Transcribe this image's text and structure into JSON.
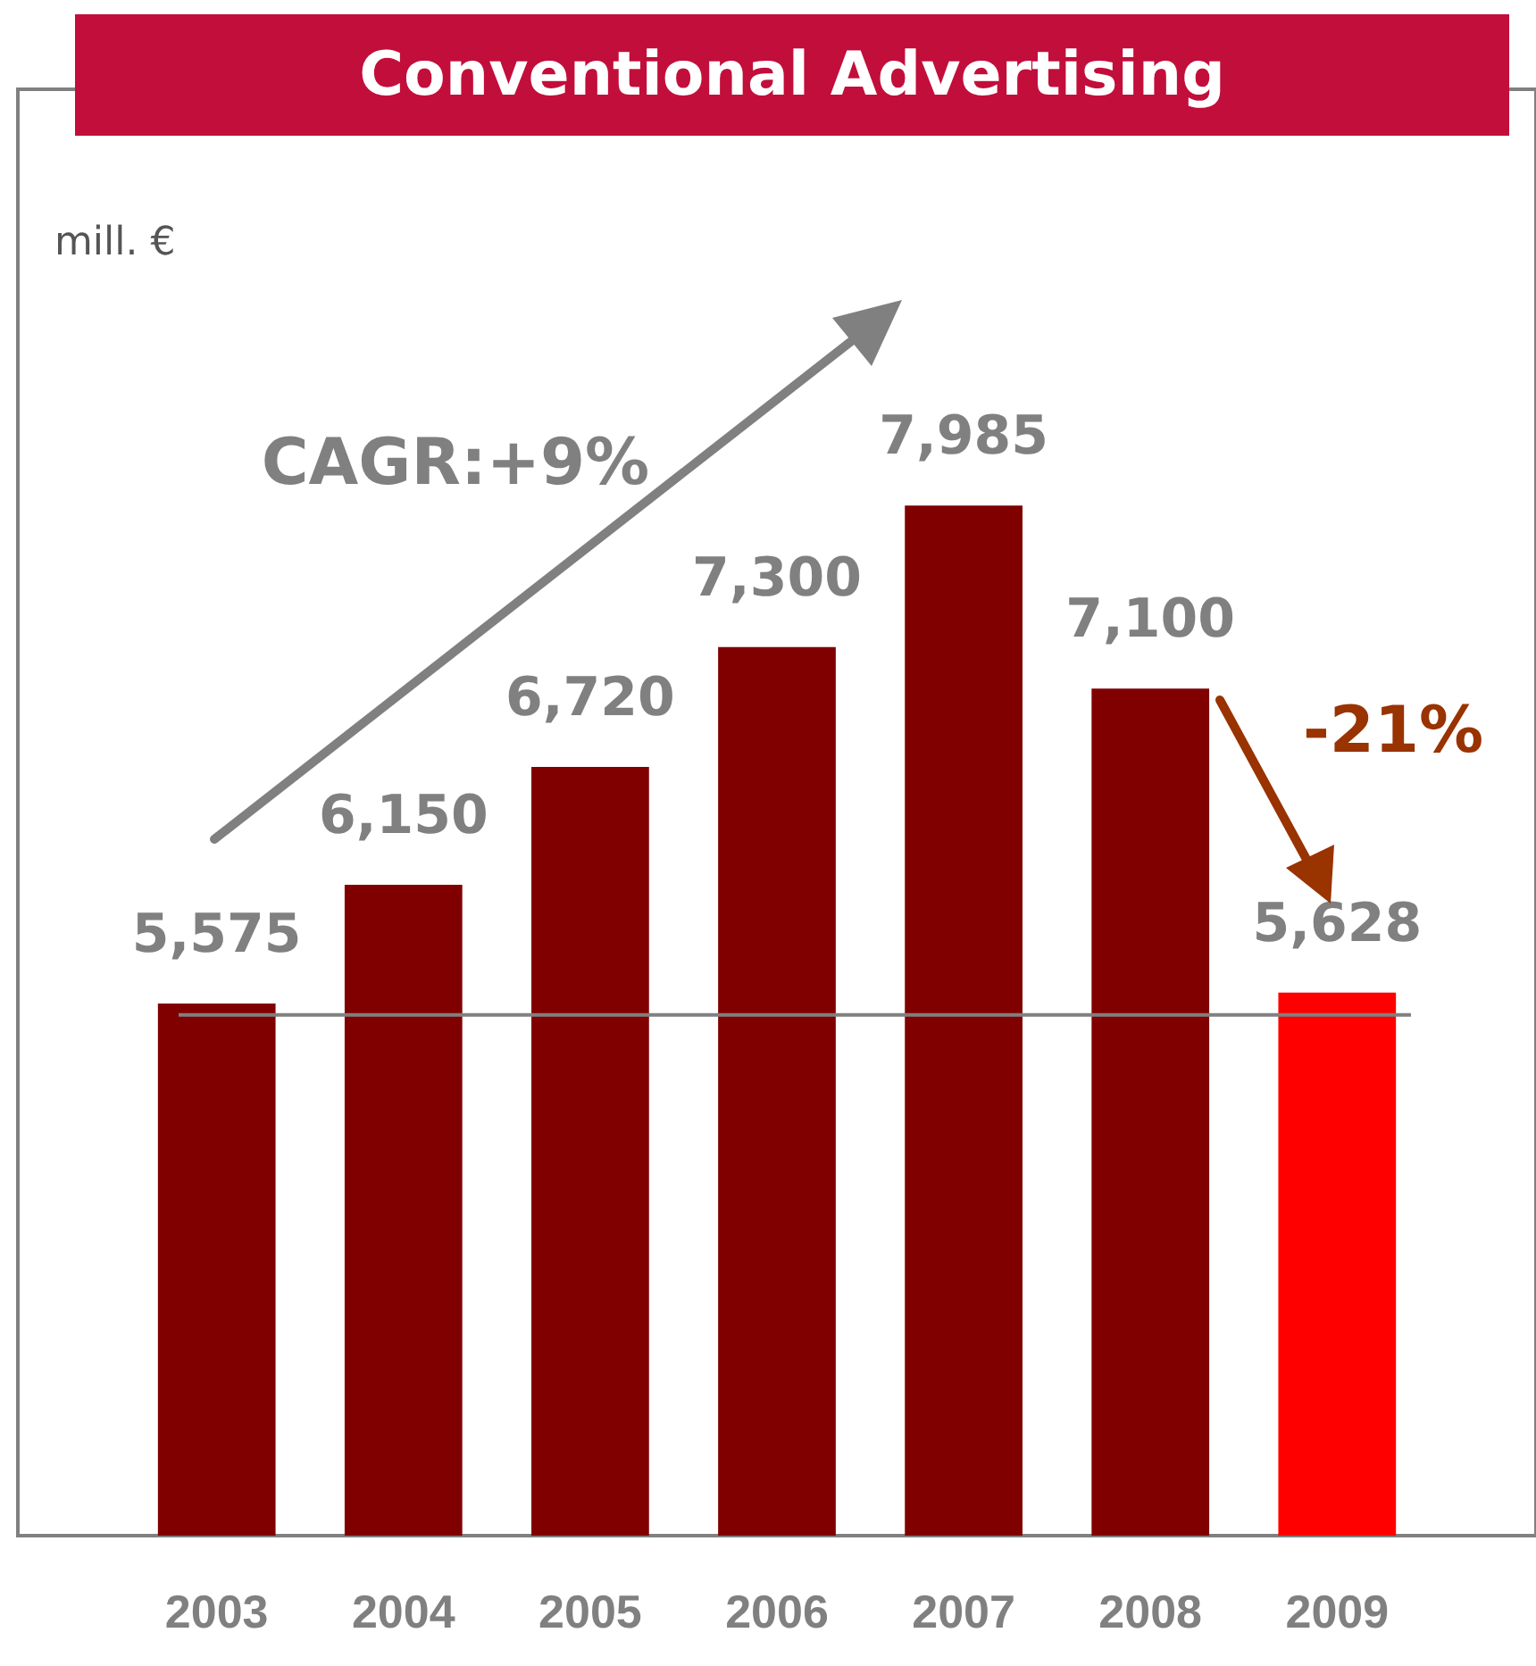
{
  "chart_data": {
    "type": "bar",
    "title": "Conventional Advertising",
    "ylabel": "mill. €",
    "categories": [
      "2003",
      "2004",
      "2005",
      "2006",
      "2007",
      "2008",
      "2009"
    ],
    "values": [
      5575,
      6150,
      6720,
      7300,
      7985,
      7100,
      5628
    ],
    "colors": [
      "#800000",
      "#800000",
      "#800000",
      "#800000",
      "#800000",
      "#800000",
      "#ff0000"
    ],
    "ylim": [
      3000,
      10000
    ],
    "value_labels": [
      "5,575",
      "6,150",
      "6,720",
      "7,300",
      "7,985",
      "7,100",
      "5,628"
    ],
    "ref_lines": [
      {
        "axis": "y",
        "value": 5520,
        "color": "#808080"
      }
    ],
    "annotations": [
      "CAGR:+9%",
      "-21%"
    ]
  }
}
